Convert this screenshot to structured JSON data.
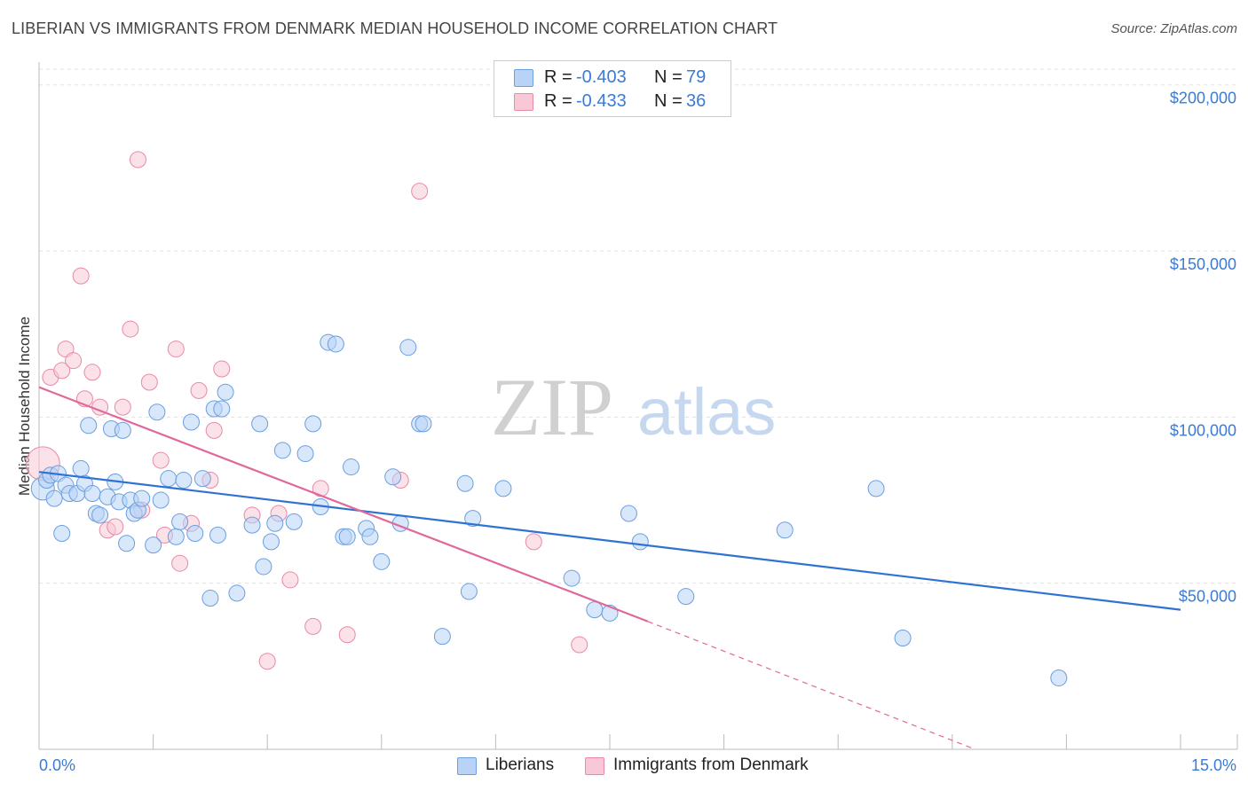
{
  "header": {
    "title": "LIBERIAN VS IMMIGRANTS FROM DENMARK MEDIAN HOUSEHOLD INCOME CORRELATION CHART",
    "source": "Source: ZipAtlas.com"
  },
  "watermark": {
    "zip": "ZIP",
    "atlas": "atlas"
  },
  "legend": {
    "rows": [
      {
        "r_label": "R =",
        "r_value": "-0.403",
        "n_label": "N =",
        "n_value": "79"
      },
      {
        "r_label": "R =",
        "r_value": "-0.433",
        "n_label": "N =",
        "n_value": "36"
      }
    ]
  },
  "bottom_legend": {
    "series1": "Liberians",
    "series2": "Immigrants from Denmark"
  },
  "colors": {
    "blue_fill": "#b8d3f5",
    "blue_stroke": "#6a9fe0",
    "blue_line": "#2f72d4",
    "pink_fill": "#f8c8d6",
    "pink_stroke": "#e88aa8",
    "pink_line": "#e0689a",
    "axis_text": "#3a7bd5"
  },
  "chart_data": {
    "type": "scatter",
    "title": "LIBERIAN VS IMMIGRANTS FROM DENMARK MEDIAN HOUSEHOLD INCOME CORRELATION CHART",
    "xlabel": "",
    "ylabel": "Median Household Income",
    "xlim": [
      0,
      15
    ],
    "ylim": [
      0,
      205000
    ],
    "x_tick_labels": [
      "0.0%",
      "15.0%"
    ],
    "y_tick_labels": [
      "$50,000",
      "$100,000",
      "$150,000",
      "$200,000"
    ],
    "y_ticks": [
      50000,
      100000,
      150000,
      200000
    ],
    "grid": true,
    "series": [
      {
        "name": "Liberians",
        "stats": {
          "R": -0.403,
          "N": 79
        },
        "trend": {
          "x": [
            0,
            15
          ],
          "y": [
            83500,
            42000
          ]
        },
        "points": [
          [
            0.05,
            78500
          ],
          [
            0.1,
            81000
          ],
          [
            0.15,
            82500
          ],
          [
            0.2,
            75500
          ],
          [
            0.25,
            83000
          ],
          [
            0.3,
            65000
          ],
          [
            0.35,
            79500
          ],
          [
            0.4,
            77000
          ],
          [
            0.5,
            77000
          ],
          [
            0.55,
            84500
          ],
          [
            0.6,
            80000
          ],
          [
            0.65,
            97500
          ],
          [
            0.7,
            77000
          ],
          [
            0.75,
            71000
          ],
          [
            0.8,
            70500
          ],
          [
            0.9,
            76000
          ],
          [
            0.95,
            96500
          ],
          [
            1.0,
            80500
          ],
          [
            1.05,
            74500
          ],
          [
            1.1,
            96000
          ],
          [
            1.15,
            62000
          ],
          [
            1.2,
            75000
          ],
          [
            1.25,
            71000
          ],
          [
            1.3,
            72000
          ],
          [
            1.35,
            75500
          ],
          [
            1.5,
            61500
          ],
          [
            1.55,
            101500
          ],
          [
            1.6,
            75000
          ],
          [
            1.7,
            81500
          ],
          [
            1.8,
            64000
          ],
          [
            1.85,
            68500
          ],
          [
            1.9,
            81000
          ],
          [
            2.0,
            98500
          ],
          [
            2.05,
            65000
          ],
          [
            2.15,
            81500
          ],
          [
            2.25,
            45500
          ],
          [
            2.3,
            102500
          ],
          [
            2.35,
            64500
          ],
          [
            2.4,
            102500
          ],
          [
            2.45,
            107500
          ],
          [
            2.6,
            47000
          ],
          [
            2.8,
            67500
          ],
          [
            2.9,
            98000
          ],
          [
            2.95,
            55000
          ],
          [
            3.05,
            62500
          ],
          [
            3.1,
            68000
          ],
          [
            3.2,
            90000
          ],
          [
            3.35,
            68500
          ],
          [
            3.5,
            89000
          ],
          [
            3.6,
            98000
          ],
          [
            3.7,
            73000
          ],
          [
            3.8,
            122500
          ],
          [
            3.9,
            122000
          ],
          [
            4.0,
            64000
          ],
          [
            4.05,
            64000
          ],
          [
            4.1,
            85000
          ],
          [
            4.3,
            66500
          ],
          [
            4.35,
            64000
          ],
          [
            4.5,
            56500
          ],
          [
            4.65,
            82000
          ],
          [
            4.75,
            68000
          ],
          [
            4.85,
            121000
          ],
          [
            5.0,
            98000
          ],
          [
            5.05,
            98000
          ],
          [
            5.3,
            34000
          ],
          [
            5.6,
            80000
          ],
          [
            5.65,
            47500
          ],
          [
            5.7,
            69500
          ],
          [
            6.1,
            78500
          ],
          [
            7.0,
            51500
          ],
          [
            7.3,
            42000
          ],
          [
            7.5,
            41000
          ],
          [
            7.75,
            71000
          ],
          [
            7.9,
            62500
          ],
          [
            8.5,
            46000
          ],
          [
            9.8,
            66000
          ],
          [
            11.0,
            78500
          ],
          [
            11.35,
            33500
          ],
          [
            13.4,
            21500
          ]
        ]
      },
      {
        "name": "Immigrants from Denmark",
        "stats": {
          "R": -0.433,
          "N": 36
        },
        "trend": {
          "x": [
            0,
            8.0
          ],
          "y": [
            109000,
            38500
          ]
        },
        "trend_dashed": {
          "x": [
            8.0,
            12.3
          ],
          "y": [
            38500,
            0
          ]
        },
        "points": [
          [
            0.05,
            86000
          ],
          [
            0.15,
            112000
          ],
          [
            0.3,
            114000
          ],
          [
            0.35,
            120500
          ],
          [
            0.45,
            117000
          ],
          [
            0.55,
            142500
          ],
          [
            0.6,
            105500
          ],
          [
            0.7,
            113500
          ],
          [
            0.8,
            103000
          ],
          [
            0.9,
            66000
          ],
          [
            1.0,
            67000
          ],
          [
            1.1,
            103000
          ],
          [
            1.2,
            126500
          ],
          [
            1.3,
            177500
          ],
          [
            1.35,
            72000
          ],
          [
            1.45,
            110500
          ],
          [
            1.6,
            87000
          ],
          [
            1.65,
            64500
          ],
          [
            1.8,
            120500
          ],
          [
            1.85,
            56000
          ],
          [
            2.0,
            68000
          ],
          [
            2.1,
            108000
          ],
          [
            2.25,
            81000
          ],
          [
            2.3,
            96000
          ],
          [
            2.4,
            114500
          ],
          [
            2.8,
            70500
          ],
          [
            3.0,
            26500
          ],
          [
            3.15,
            71000
          ],
          [
            3.3,
            51000
          ],
          [
            3.6,
            37000
          ],
          [
            3.7,
            78500
          ],
          [
            4.05,
            34500
          ],
          [
            4.75,
            81000
          ],
          [
            5.0,
            168000
          ],
          [
            6.5,
            62500
          ],
          [
            7.1,
            31500
          ]
        ]
      }
    ]
  }
}
